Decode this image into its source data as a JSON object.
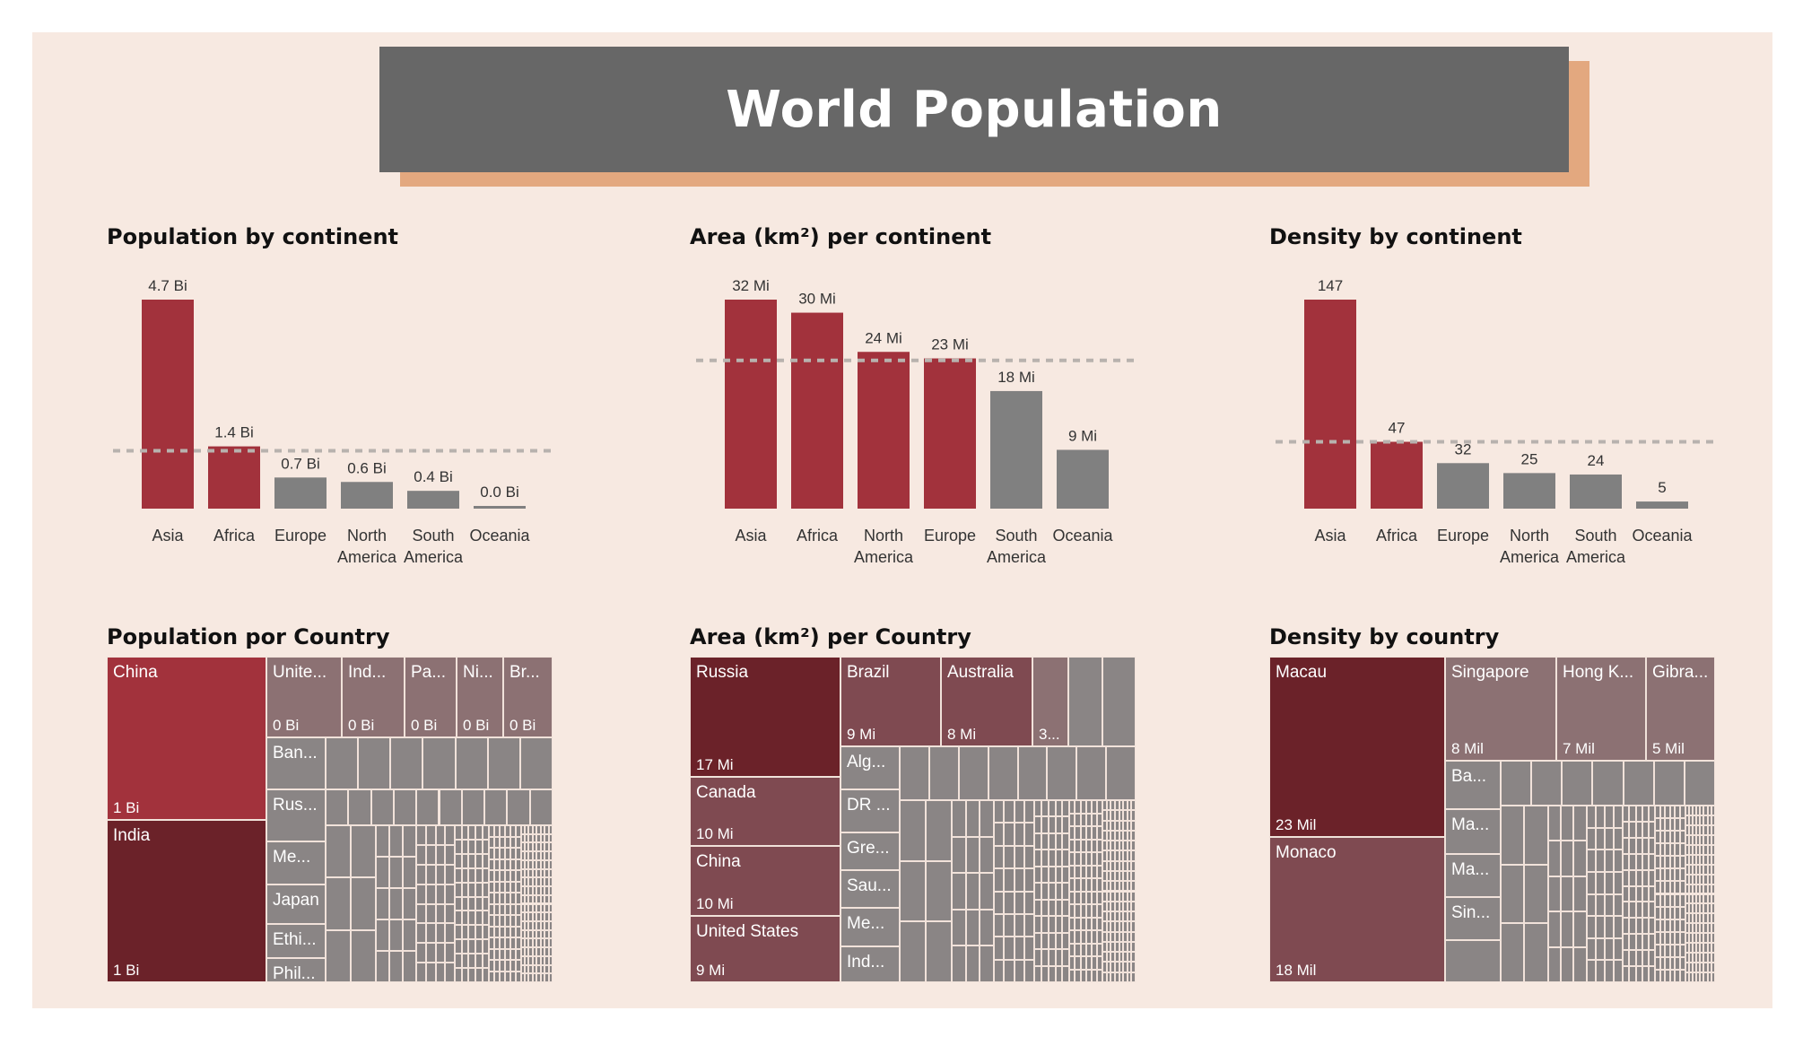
{
  "title": "World Population",
  "colors": {
    "highlight": "#a2323c",
    "neutral": "#808080",
    "avg_line": "#b8b2ae"
  },
  "chart_data": [
    {
      "type": "bar",
      "title": "Population by continent",
      "categories": [
        "Asia",
        "Africa",
        "Europe",
        "North America",
        "South America",
        "Oceania"
      ],
      "values": [
        4.7,
        1.4,
        0.7,
        0.6,
        0.4,
        0.0
      ],
      "labels": [
        "4.7 Bi",
        "1.4 Bi",
        "0.7 Bi",
        "0.6 Bi",
        "0.4 Bi",
        "0.0 Bi"
      ],
      "highlight": [
        true,
        true,
        false,
        false,
        false,
        false
      ],
      "average_line": 1.3,
      "ylim": [
        0,
        4.7
      ]
    },
    {
      "type": "bar",
      "title": "Area (km²) per continent",
      "categories": [
        "Asia",
        "Africa",
        "North America",
        "Europe",
        "South America",
        "Oceania"
      ],
      "values": [
        32,
        30,
        24,
        23,
        18,
        9
      ],
      "labels": [
        "32 Mi",
        "30 Mi",
        "24 Mi",
        "23 Mi",
        "18 Mi",
        "9 Mi"
      ],
      "highlight": [
        true,
        true,
        true,
        true,
        false,
        false
      ],
      "average_line": 22.7,
      "ylim": [
        0,
        32
      ]
    },
    {
      "type": "bar",
      "title": "Density by continent",
      "categories": [
        "Asia",
        "Africa",
        "Europe",
        "North America",
        "South America",
        "Oceania"
      ],
      "values": [
        147,
        47,
        32,
        25,
        24,
        5
      ],
      "labels": [
        "147",
        "47",
        "32",
        "25",
        "24",
        "5"
      ],
      "highlight": [
        true,
        true,
        false,
        false,
        false,
        false
      ],
      "average_line": 47,
      "ylim": [
        0,
        147
      ]
    },
    {
      "type": "treemap",
      "title": "Population por Country",
      "items": [
        {
          "name": "China",
          "value_label": "1 Bi"
        },
        {
          "name": "India",
          "value_label": "1 Bi"
        },
        {
          "name": "Unite...",
          "value_label": "0 Bi"
        },
        {
          "name": "Ind...",
          "value_label": "0 Bi"
        },
        {
          "name": "Pa...",
          "value_label": "0 Bi"
        },
        {
          "name": "Ni...",
          "value_label": "0 Bi"
        },
        {
          "name": "Br...",
          "value_label": "0 Bi"
        },
        {
          "name": "Ban...",
          "value_label": ""
        },
        {
          "name": "Rus...",
          "value_label": ""
        },
        {
          "name": "Me...",
          "value_label": ""
        },
        {
          "name": "Japan",
          "value_label": ""
        },
        {
          "name": "Ethi...",
          "value_label": ""
        },
        {
          "name": "Phil...",
          "value_label": ""
        }
      ]
    },
    {
      "type": "treemap",
      "title": "Area (km²) per Country",
      "items": [
        {
          "name": "Russia",
          "value_label": "17 Mi"
        },
        {
          "name": "Canada",
          "value_label": "10 Mi"
        },
        {
          "name": "China",
          "value_label": "10 Mi"
        },
        {
          "name": "United States",
          "value_label": "9 Mi"
        },
        {
          "name": "Brazil",
          "value_label": "9 Mi"
        },
        {
          "name": "Australia",
          "value_label": "8 Mi"
        },
        {
          "name": "",
          "value_label": "3..."
        },
        {
          "name": "Alg...",
          "value_label": ""
        },
        {
          "name": "DR ...",
          "value_label": ""
        },
        {
          "name": "Gre...",
          "value_label": ""
        },
        {
          "name": "Sau...",
          "value_label": ""
        },
        {
          "name": "Me...",
          "value_label": ""
        },
        {
          "name": "Ind...",
          "value_label": ""
        }
      ]
    },
    {
      "type": "treemap",
      "title": "Density by country",
      "items": [
        {
          "name": "Macau",
          "value_label": "23 Mil"
        },
        {
          "name": "Monaco",
          "value_label": "18 Mil"
        },
        {
          "name": "Singapore",
          "value_label": "8 Mil"
        },
        {
          "name": "Hong K...",
          "value_label": "7 Mil"
        },
        {
          "name": "Gibra...",
          "value_label": "5 Mil"
        },
        {
          "name": "Ba...",
          "value_label": ""
        },
        {
          "name": "Ma...",
          "value_label": ""
        },
        {
          "name": "Ma...",
          "value_label": ""
        },
        {
          "name": "Sin...",
          "value_label": ""
        }
      ]
    }
  ]
}
